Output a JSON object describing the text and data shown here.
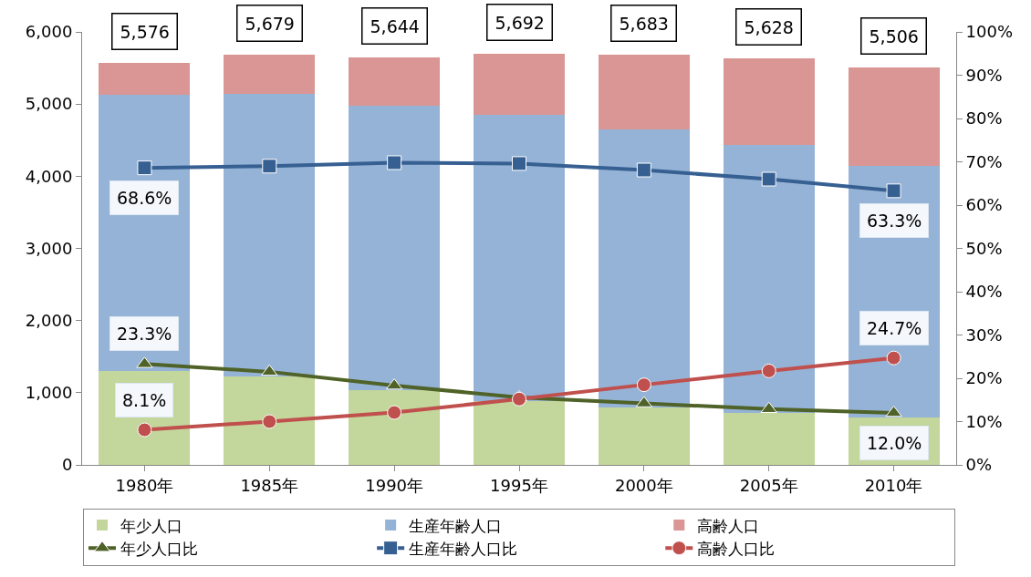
{
  "chart_data": {
    "type": "bar",
    "stacked": true,
    "categories": [
      "1980年",
      "1985年",
      "1990年",
      "1995年",
      "2000年",
      "2005年",
      "2010年"
    ],
    "series": [
      {
        "name": "年少人口",
        "color": "#c3d69b",
        "values": [
          1299,
          1221,
          1033,
          890,
          800,
          725,
          660
        ]
      },
      {
        "name": "生産年齢人口",
        "color": "#95b3d7",
        "values": [
          3825,
          3918,
          3940,
          3960,
          3850,
          3712,
          3485
        ]
      },
      {
        "name": "高齢人口",
        "color": "#d99694",
        "values": [
          452,
          540,
          671,
          842,
          1033,
          1191,
          1361
        ]
      },
      {
        "name": "年少人口比",
        "type": "line",
        "axis": "y2",
        "marker": "triangle",
        "color": "#4f6228",
        "values": [
          23.3,
          21.5,
          18.3,
          15.6,
          14.2,
          12.9,
          12.0
        ],
        "value_labels": [
          "23.3%",
          null,
          null,
          null,
          null,
          null,
          "12.0%"
        ]
      },
      {
        "name": "生産年齢人口比",
        "type": "line",
        "axis": "y2",
        "marker": "square",
        "color": "#376092",
        "values": [
          68.6,
          69.0,
          69.8,
          69.6,
          68.1,
          66.0,
          63.3
        ],
        "value_labels": [
          "68.6%",
          null,
          null,
          null,
          null,
          null,
          "63.3%"
        ]
      },
      {
        "name": "高齢人口比",
        "type": "line",
        "axis": "y2",
        "marker": "circle",
        "color": "#c0504d",
        "values": [
          8.1,
          10.0,
          12.1,
          15.2,
          18.5,
          21.7,
          24.7
        ],
        "value_labels": [
          "8.1%",
          null,
          null,
          null,
          null,
          null,
          "24.7%"
        ]
      }
    ],
    "totals": [
      "5,576",
      "5,679",
      "5,644",
      "5,692",
      "5,683",
      "5,628",
      "5,506"
    ],
    "ylim": [
      0,
      6000
    ],
    "yticks": [
      0,
      {
        "value": 1000,
        "label": "1,000"
      },
      {
        "value": 2000,
        "label": "2,000"
      },
      {
        "value": 3000,
        "label": "3,000"
      },
      {
        "value": 4000,
        "label": "4,000"
      },
      {
        "value": 5000,
        "label": "5,000"
      },
      {
        "value": 6000,
        "label": "6,000"
      }
    ],
    "y2lim": [
      0,
      100
    ],
    "y2ticks": [
      {
        "value": 0,
        "label": "0%"
      },
      {
        "value": 10,
        "label": "10%"
      },
      {
        "value": 20,
        "label": "20%"
      },
      {
        "value": 30,
        "label": "30%"
      },
      {
        "value": 40,
        "label": "40%"
      },
      {
        "value": 50,
        "label": "50%"
      },
      {
        "value": 60,
        "label": "60%"
      },
      {
        "value": 70,
        "label": "70%"
      },
      {
        "value": 80,
        "label": "80%"
      },
      {
        "value": 90,
        "label": "90%"
      },
      {
        "value": 100,
        "label": "100%"
      }
    ],
    "grid": false,
    "legend": "bottom"
  }
}
